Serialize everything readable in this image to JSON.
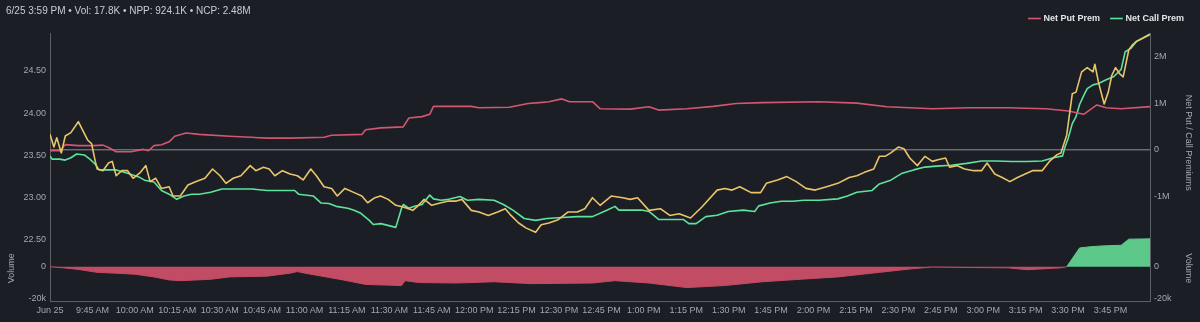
{
  "chart_data": [
    {
      "type": "line",
      "title": "6/25 3:59 PM • Vol: 17.8K • NPP: 924.1K • NCP: 2.48M",
      "y2label": "Net Put / Call Premiums",
      "legend": "top right",
      "tick_labels": "y",
      "grid": false,
      "marker": "none",
      "line_style": "solid",
      "xlim": [
        9.5,
        15.983
      ],
      "ylim": [
        22.35,
        24.95
      ],
      "yticks": [
        {
          "value": 22.5,
          "label": "22.50"
        },
        {
          "value": 23,
          "label": "23.00"
        },
        {
          "value": 23.5,
          "label": "23.50"
        },
        {
          "value": 24,
          "label": "24.00"
        },
        {
          "value": 24.5,
          "label": "24.50"
        }
      ],
      "y2lim": [
        -2200000,
        2500000
      ],
      "y2ticks": [
        {
          "value": -1000000,
          "label": "-1M"
        },
        0,
        {
          "value": 1000000,
          "label": "1M"
        },
        {
          "value": 2000000,
          "label": "2M"
        }
      ],
      "ref_lines": [
        {
          "axis": "y2",
          "value": 0,
          "color": "#8d9096"
        }
      ],
      "series": [
        {
          "color": "#e9c46a",
          "x": [
            9.5,
            9.523,
            9.54,
            9.553,
            9.567,
            9.59,
            9.623,
            9.667,
            9.69,
            9.723,
            9.745,
            9.767,
            9.778,
            9.812,
            9.845,
            9.867,
            9.89,
            9.923,
            9.957,
            9.99,
            10.033,
            10.065,
            10.09,
            10.123,
            10.157,
            10.202,
            10.225,
            10.268,
            10.313,
            10.358,
            10.413,
            10.458,
            10.502,
            10.537,
            10.58,
            10.625,
            10.68,
            10.713,
            10.758,
            10.792,
            10.825,
            10.87,
            10.915,
            10.958,
            10.992,
            11.037,
            11.07,
            11.115,
            11.16,
            11.193,
            11.238,
            11.293,
            11.338,
            11.372,
            11.415,
            11.448,
            11.493,
            11.538,
            11.582,
            11.638,
            11.672,
            11.705,
            11.75,
            11.805,
            11.85,
            11.895,
            11.928,
            11.983,
            12.028,
            12.083,
            12.138,
            12.183,
            12.217,
            12.262,
            12.307,
            12.362,
            12.395,
            12.44,
            12.495,
            12.552,
            12.607,
            12.652,
            12.697,
            12.742,
            12.808,
            12.875,
            12.92,
            12.963,
            13.03,
            13.097,
            13.153,
            13.208,
            13.275,
            13.342,
            13.432,
            13.477,
            13.52,
            13.565,
            13.632,
            13.688,
            13.722,
            13.788,
            13.843,
            13.898,
            13.955,
            14.01,
            14.077,
            14.143,
            14.21,
            14.255,
            14.3,
            14.355,
            14.388,
            14.422,
            14.455,
            14.5,
            14.533,
            14.567,
            14.612,
            14.657,
            14.7,
            14.733,
            14.778,
            14.802,
            14.845,
            14.89,
            14.945,
            14.99,
            15.023,
            15.068,
            15.112,
            15.157,
            15.202,
            15.247,
            15.29,
            15.347,
            15.39,
            15.435,
            15.458,
            15.492,
            15.525,
            15.547,
            15.58,
            15.613,
            15.647,
            15.658,
            15.68,
            15.713,
            15.737,
            15.758,
            15.78,
            15.803,
            15.825,
            15.858,
            15.88,
            15.903,
            15.983
          ],
          "values": [
            23.75,
            23.6,
            23.71,
            23.62,
            23.53,
            23.73,
            23.77,
            23.9,
            23.81,
            23.68,
            23.64,
            23.43,
            23.34,
            23.32,
            23.41,
            23.43,
            23.26,
            23.32,
            23.32,
            23.23,
            23.3,
            23.38,
            23.19,
            23.23,
            23.11,
            23.13,
            23.02,
            23.02,
            23.15,
            23.19,
            23.23,
            23.34,
            23.26,
            23.17,
            23.23,
            23.26,
            23.38,
            23.32,
            23.36,
            23.34,
            23.26,
            23.32,
            23.28,
            23.26,
            23.21,
            23.34,
            23.26,
            23.13,
            23.11,
            23.02,
            23.11,
            23.06,
            23.02,
            22.94,
            23.0,
            23.02,
            22.98,
            22.91,
            22.89,
            22.85,
            22.91,
            22.98,
            22.91,
            22.94,
            22.96,
            22.96,
            22.98,
            22.85,
            22.83,
            22.79,
            22.83,
            22.87,
            22.79,
            22.7,
            22.64,
            22.59,
            22.68,
            22.7,
            22.74,
            22.83,
            22.83,
            22.87,
            23.0,
            22.91,
            23.02,
            23.0,
            22.98,
            23.0,
            22.85,
            22.87,
            22.79,
            22.81,
            22.76,
            22.89,
            23.09,
            23.11,
            23.09,
            23.13,
            23.06,
            23.06,
            23.17,
            23.21,
            23.25,
            23.19,
            23.11,
            23.09,
            23.13,
            23.17,
            23.24,
            23.26,
            23.3,
            23.34,
            23.49,
            23.49,
            23.53,
            23.6,
            23.58,
            23.47,
            23.38,
            23.49,
            23.43,
            23.45,
            23.47,
            23.36,
            23.38,
            23.34,
            23.32,
            23.32,
            23.41,
            23.28,
            23.24,
            23.19,
            23.24,
            23.28,
            23.32,
            23.32,
            23.43,
            23.51,
            23.53,
            23.74,
            24.23,
            24.25,
            24.49,
            24.54,
            24.49,
            24.58,
            24.36,
            24.11,
            24.25,
            24.45,
            24.54,
            24.47,
            24.43,
            24.75,
            24.81,
            24.85,
            24.93
          ]
        },
        {
          "name": "Net Put Prem",
          "color": "#d4566f",
          "axis": "y2",
          "x": [
            9.5,
            9.557,
            9.59,
            9.667,
            9.757,
            9.812,
            9.845,
            9.89,
            9.978,
            10.047,
            10.08,
            10.113,
            10.157,
            10.202,
            10.235,
            10.302,
            10.38,
            10.558,
            10.78,
            10.915,
            11.115,
            11.16,
            11.338,
            11.36,
            11.45,
            11.582,
            11.615,
            11.693,
            11.738,
            11.76,
            11.983,
            12.028,
            12.207,
            12.318,
            12.385,
            12.44,
            12.517,
            12.562,
            12.697,
            12.742,
            12.92,
            13.03,
            13.087,
            13.253,
            13.41,
            13.543,
            13.698,
            14.033,
            14.255,
            14.433,
            14.7,
            14.923,
            15.147,
            15.368,
            15.502,
            15.592,
            15.635,
            15.67,
            15.725,
            15.813,
            15.983
          ],
          "values": [
            -20000,
            -20000,
            110000,
            90000,
            90000,
            100000,
            50000,
            -40000,
            -40000,
            10000,
            -20000,
            90000,
            110000,
            170000,
            290000,
            360000,
            330000,
            290000,
            250000,
            250000,
            270000,
            310000,
            330000,
            430000,
            470000,
            490000,
            680000,
            710000,
            760000,
            930000,
            930000,
            900000,
            910000,
            990000,
            1010000,
            1030000,
            1090000,
            1030000,
            1030000,
            880000,
            870000,
            920000,
            850000,
            880000,
            930000,
            990000,
            1010000,
            1030000,
            1000000,
            920000,
            880000,
            900000,
            900000,
            880000,
            830000,
            760000,
            870000,
            960000,
            900000,
            880000,
            924100
          ]
        },
        {
          "name": "Net Call Prem",
          "color": "#5ee39b",
          "axis": "y2",
          "x": [
            9.5,
            9.512,
            9.557,
            9.59,
            9.623,
            9.657,
            9.702,
            9.735,
            9.767,
            9.79,
            9.835,
            9.89,
            9.957,
            10.023,
            10.057,
            10.113,
            10.157,
            10.202,
            10.247,
            10.29,
            10.335,
            10.38,
            10.447,
            10.513,
            10.603,
            10.692,
            10.78,
            10.865,
            10.898,
            10.942,
            10.965,
            11.053,
            11.098,
            11.143,
            11.187,
            11.255,
            11.288,
            11.332,
            11.382,
            11.405,
            11.45,
            11.538,
            11.572,
            11.582,
            11.615,
            11.648,
            11.693,
            11.738,
            11.76,
            11.805,
            11.85,
            11.917,
            11.96,
            12.028,
            12.117,
            12.172,
            12.228,
            12.295,
            12.362,
            12.428,
            12.517,
            12.607,
            12.697,
            12.785,
            12.83,
            12.853,
            12.92,
            12.987,
            13.03,
            13.087,
            13.165,
            13.232,
            13.265,
            13.308,
            13.365,
            13.432,
            13.498,
            13.587,
            13.653,
            13.677,
            13.743,
            13.81,
            13.877,
            13.943,
            14.032,
            14.143,
            14.2,
            14.255,
            14.345,
            14.388,
            14.455,
            14.523,
            14.59,
            14.657,
            14.723,
            14.812,
            14.902,
            14.99,
            15.078,
            15.168,
            15.257,
            15.347,
            15.413,
            15.468,
            15.48,
            15.502,
            15.525,
            15.547,
            15.568,
            15.592,
            15.613,
            15.647,
            15.68,
            15.725,
            15.77,
            15.813,
            15.837,
            15.87,
            15.903,
            15.983
          ],
          "values": [
            -130000,
            -200000,
            -200000,
            -220000,
            -170000,
            -90000,
            -110000,
            -200000,
            -310000,
            -430000,
            -430000,
            -430000,
            -500000,
            -580000,
            -650000,
            -690000,
            -870000,
            -950000,
            -1060000,
            -990000,
            -950000,
            -950000,
            -910000,
            -840000,
            -840000,
            -840000,
            -870000,
            -870000,
            -870000,
            -870000,
            -950000,
            -990000,
            -1140000,
            -1150000,
            -1210000,
            -1250000,
            -1290000,
            -1360000,
            -1510000,
            -1600000,
            -1580000,
            -1660000,
            -1250000,
            -1170000,
            -1250000,
            -1210000,
            -1170000,
            -970000,
            -1050000,
            -1080000,
            -1060000,
            -1000000,
            -1080000,
            -1060000,
            -1080000,
            -1170000,
            -1290000,
            -1470000,
            -1510000,
            -1470000,
            -1450000,
            -1430000,
            -1430000,
            -1290000,
            -1210000,
            -1290000,
            -1290000,
            -1290000,
            -1320000,
            -1490000,
            -1490000,
            -1490000,
            -1580000,
            -1580000,
            -1430000,
            -1400000,
            -1320000,
            -1290000,
            -1320000,
            -1200000,
            -1140000,
            -1100000,
            -1100000,
            -1080000,
            -1080000,
            -1050000,
            -990000,
            -910000,
            -870000,
            -730000,
            -650000,
            -500000,
            -430000,
            -370000,
            -350000,
            -330000,
            -290000,
            -240000,
            -240000,
            -250000,
            -250000,
            -240000,
            -170000,
            -130000,
            40000,
            260000,
            560000,
            710000,
            970000,
            1160000,
            1310000,
            1390000,
            1420000,
            1500000,
            1570000,
            1720000,
            2100000,
            2170000,
            2320000,
            2480000
          ]
        }
      ]
    },
    {
      "type": "area",
      "ylabel": "Volume",
      "y2label": "Volume",
      "legend": false,
      "grid": false,
      "marker": "none",
      "xlim": [
        9.5,
        15.983
      ],
      "xticks": [
        {
          "value": 9.5,
          "label": "Jun 25"
        },
        {
          "value": 9.75,
          "label": "9:45 AM"
        },
        {
          "value": 10,
          "label": "10:00 AM"
        },
        {
          "value": 10.25,
          "label": "10:15 AM"
        },
        {
          "value": 10.5,
          "label": "10:30 AM"
        },
        {
          "value": 10.75,
          "label": "10:45 AM"
        },
        {
          "value": 11,
          "label": "11:00 AM"
        },
        {
          "value": 11.25,
          "label": "11:15 AM"
        },
        {
          "value": 11.5,
          "label": "11:30 AM"
        },
        {
          "value": 11.75,
          "label": "11:45 AM"
        },
        {
          "value": 12,
          "label": "12:00 PM"
        },
        {
          "value": 12.25,
          "label": "12:15 PM"
        },
        {
          "value": 12.5,
          "label": "12:30 PM"
        },
        {
          "value": 12.75,
          "label": "12:45 PM"
        },
        {
          "value": 13,
          "label": "1:00 PM"
        },
        {
          "value": 13.25,
          "label": "1:15 PM"
        },
        {
          "value": 13.5,
          "label": "1:30 PM"
        },
        {
          "value": 13.75,
          "label": "1:45 PM"
        },
        {
          "value": 14,
          "label": "2:00 PM"
        },
        {
          "value": 14.25,
          "label": "2:15 PM"
        },
        {
          "value": 14.5,
          "label": "2:30 PM"
        },
        {
          "value": 14.75,
          "label": "2:45 PM"
        },
        {
          "value": 15,
          "label": "3:00 PM"
        },
        {
          "value": 15.25,
          "label": "3:15 PM"
        },
        {
          "value": 15.5,
          "label": "3:30 PM"
        },
        {
          "value": 15.75,
          "label": "3:45 PM"
        }
      ],
      "ylim": [
        -22000,
        20000
      ],
      "yticks": [
        {
          "value": -20000,
          "label": "-20k"
        },
        0
      ],
      "y2lim": [
        -22000,
        20000
      ],
      "y2ticks": [
        {
          "value": -20000,
          "label": "-20k"
        },
        0
      ],
      "series": [
        {
          "color": "#c24c64",
          "x": [
            9.5,
            9.578,
            9.667,
            9.778,
            9.89,
            10.002,
            10.113,
            10.202,
            10.268,
            10.447,
            10.558,
            10.78,
            10.915,
            10.958,
            11.003,
            11.227,
            11.36,
            11.572,
            11.593,
            11.672,
            11.895,
            12.117,
            12.34,
            12.697,
            12.83,
            13.03,
            13.253,
            13.477,
            13.698,
            13.922,
            14.143,
            14.388,
            14.59,
            14.7,
            14.923,
            15.147,
            15.257,
            15.458,
            15.492
          ],
          "values": [
            0,
            -700,
            -1700,
            -3600,
            -4100,
            -4800,
            -6500,
            -8400,
            -8900,
            -8000,
            -6500,
            -6000,
            -4100,
            -3100,
            -4100,
            -8400,
            -11300,
            -12000,
            -8900,
            -10100,
            -10400,
            -9600,
            -10800,
            -10400,
            -8900,
            -10400,
            -13300,
            -12000,
            -9600,
            -8000,
            -6500,
            -3600,
            -1200,
            -200,
            -500,
            -700,
            -1900,
            -700,
            0
          ]
        },
        {
          "color": "#5cc98a",
          "x": [
            15.492,
            15.568,
            15.635,
            15.703,
            15.813,
            15.858,
            15.983
          ],
          "values": [
            0,
            12000,
            12800,
            13300,
            13700,
            17600,
            17800
          ]
        }
      ]
    }
  ]
}
